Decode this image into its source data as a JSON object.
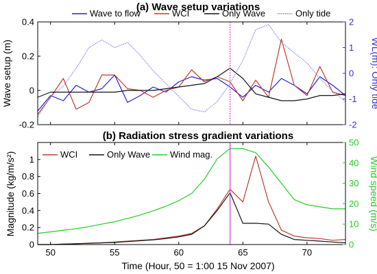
{
  "chart_data": [
    {
      "type": "line",
      "title": "(a) Wave setup variations",
      "ylabel": "Wave setup (m)",
      "y2label": "WL(m): Only tide",
      "ylim": [
        -0.2,
        0.4
      ],
      "y2lim": [
        -2,
        2
      ],
      "xlim": [
        49,
        73
      ],
      "yticks": [
        -0.2,
        0,
        0.2,
        0.4
      ],
      "y2ticks": [
        -2,
        -1,
        0,
        1,
        2
      ],
      "vline_x": 64,
      "legend_position": "top",
      "series": [
        {
          "name": "Wave to flow",
          "color": "#1f1fd8",
          "axis": "left",
          "dash": "none",
          "x": [
            49,
            50,
            51,
            52,
            53,
            54,
            55,
            56,
            57,
            58,
            59,
            60,
            61,
            62,
            63,
            64,
            65,
            66,
            67,
            68,
            69,
            70,
            71,
            72,
            73
          ],
          "y": [
            -0.12,
            -0.03,
            -0.06,
            0.03,
            -0.01,
            0.01,
            0.09,
            -0.07,
            -0.03,
            0.02,
            -0.01,
            0.05,
            0.08,
            0.06,
            0.07,
            0.02,
            -0.04,
            0.03,
            -0.01,
            0.07,
            0.03,
            -0.02,
            0.08,
            0.03,
            -0.03
          ]
        },
        {
          "name": "WCI",
          "color": "#c0392b",
          "axis": "left",
          "dash": "none",
          "x": [
            49,
            50,
            51,
            52,
            53,
            54,
            55,
            56,
            57,
            58,
            59,
            60,
            61,
            62,
            63,
            64,
            65,
            66,
            67,
            68,
            69,
            70,
            71,
            72,
            73
          ],
          "y": [
            -0.14,
            -0.04,
            0.07,
            -0.11,
            -0.07,
            0.09,
            0.09,
            0.01,
            0.0,
            -0.04,
            0.0,
            0.02,
            0.12,
            0.05,
            0.08,
            0.05,
            -0.06,
            0.06,
            -0.04,
            0.3,
            0.03,
            -0.03,
            0.14,
            -0.01,
            -0.03
          ]
        },
        {
          "name": "Only Wave",
          "color": "#111111",
          "axis": "left",
          "dash": "none",
          "x": [
            49,
            50,
            51,
            52,
            53,
            54,
            55,
            56,
            57,
            58,
            59,
            60,
            61,
            62,
            63,
            64,
            65,
            66,
            67,
            68,
            69,
            70,
            71,
            72,
            73
          ],
          "y": [
            -0.04,
            -0.01,
            -0.01,
            -0.01,
            -0.01,
            -0.01,
            -0.01,
            0.0,
            0.0,
            0.0,
            0.01,
            0.02,
            0.03,
            0.04,
            0.08,
            0.13,
            0.07,
            -0.02,
            -0.04,
            -0.06,
            -0.06,
            -0.05,
            -0.03,
            -0.03,
            -0.02
          ]
        },
        {
          "name": "Only tide",
          "color": "#7b7bf0",
          "axis": "right",
          "dash": "dotted",
          "x": [
            49,
            50,
            51,
            52,
            53,
            54,
            55,
            56,
            57,
            58,
            59,
            60,
            61,
            62,
            63,
            64,
            65,
            66,
            67,
            68,
            69,
            70,
            71,
            72,
            73
          ],
          "y": [
            -1.7,
            -0.9,
            -0.5,
            0.2,
            1.0,
            1.3,
            1.0,
            1.2,
            0.7,
            0.1,
            -0.4,
            -0.9,
            -1.4,
            -1.5,
            -1.1,
            -0.4,
            0.5,
            1.7,
            1.9,
            1.2,
            0.8,
            0.4,
            -0.2,
            -0.7,
            -1.1
          ]
        }
      ]
    },
    {
      "type": "line",
      "title": "(b) Radiation stress gradient variations",
      "xlabel": "Time (Hour, 50 = 1:00 15 Nov 2007)",
      "ylabel": "Magnitude (kg/m/s²)",
      "y2label": "Wind speed (m/s)",
      "ylim": [
        0,
        1.2
      ],
      "y2lim": [
        0,
        50
      ],
      "xlim": [
        49,
        73
      ],
      "xticks": [
        50,
        55,
        60,
        65,
        70
      ],
      "yticks": [
        0,
        0.2,
        0.4,
        0.6,
        0.8,
        1
      ],
      "y2ticks": [
        0,
        10,
        20,
        30,
        40,
        50
      ],
      "vline_x": 64,
      "legend_position": "top",
      "series": [
        {
          "name": "WCI",
          "color": "#c0392b",
          "axis": "left",
          "dash": "none",
          "x": [
            49,
            50,
            51,
            52,
            53,
            54,
            55,
            56,
            57,
            58,
            59,
            60,
            61,
            62,
            63,
            64,
            65,
            66,
            67,
            68,
            69,
            70,
            71,
            72,
            73
          ],
          "y": [
            0.0,
            0.0,
            0.005,
            0.01,
            0.015,
            0.02,
            0.03,
            0.04,
            0.05,
            0.06,
            0.08,
            0.1,
            0.13,
            0.22,
            0.42,
            0.65,
            0.5,
            1.04,
            0.5,
            0.17,
            0.1,
            0.08,
            0.07,
            0.05,
            0.06
          ]
        },
        {
          "name": "Only Wave",
          "color": "#111111",
          "axis": "left",
          "dash": "none",
          "x": [
            49,
            50,
            51,
            52,
            53,
            54,
            55,
            56,
            57,
            58,
            59,
            60,
            61,
            62,
            63,
            64,
            65,
            66,
            67,
            68,
            69,
            70,
            71,
            72,
            73
          ],
          "y": [
            0.0,
            0.0,
            0.005,
            0.01,
            0.015,
            0.02,
            0.025,
            0.035,
            0.045,
            0.055,
            0.07,
            0.09,
            0.12,
            0.22,
            0.4,
            0.61,
            0.25,
            0.25,
            0.24,
            0.12,
            0.06,
            0.05,
            0.04,
            0.03,
            0.02
          ]
        },
        {
          "name": "Wind mag.",
          "color": "#22cc22",
          "axis": "right",
          "dash": "none",
          "x": [
            49,
            50,
            51,
            52,
            53,
            54,
            55,
            56,
            57,
            58,
            59,
            60,
            61,
            62,
            63,
            64,
            65,
            66,
            67,
            68,
            69,
            70,
            71,
            72,
            73
          ],
          "y": [
            5.5,
            6.2,
            7.0,
            7.8,
            8.8,
            10.0,
            11.2,
            12.8,
            14.5,
            16.5,
            18.8,
            21.5,
            25.0,
            32.0,
            42.0,
            47.0,
            47.0,
            45.0,
            38.0,
            30.0,
            22.0,
            19.5,
            18.5,
            17.5,
            17.5
          ]
        }
      ]
    }
  ]
}
